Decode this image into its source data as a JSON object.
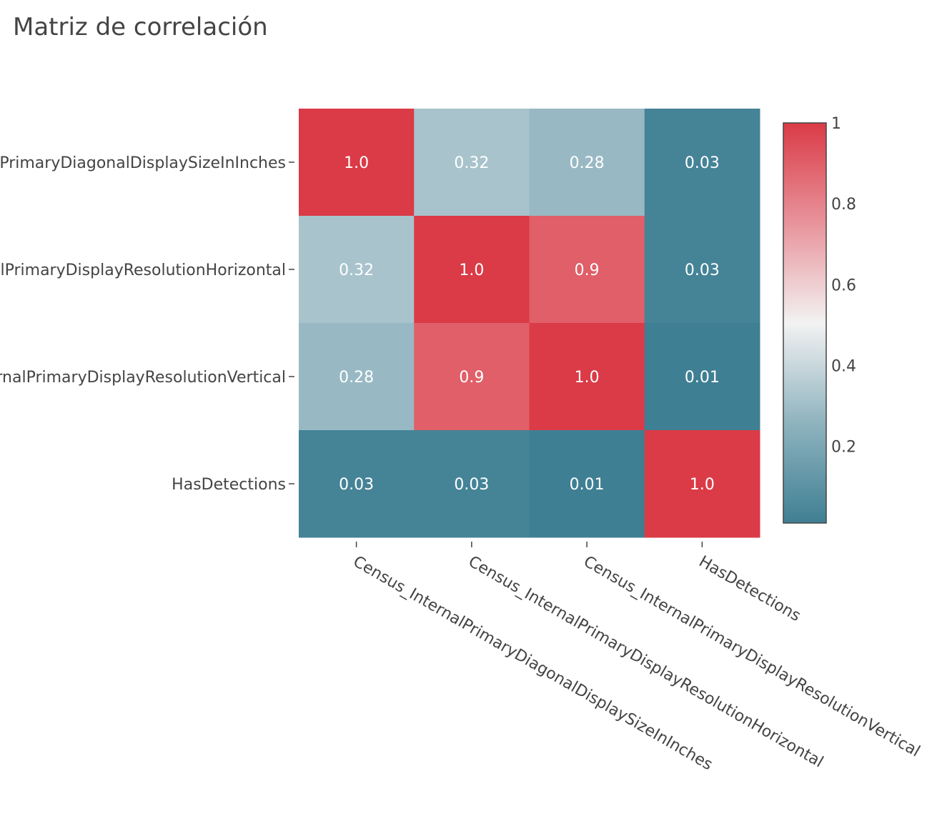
{
  "chart_data": {
    "type": "heatmap",
    "title": "Matriz de correlación",
    "x_categories": [
      "Census_InternalPrimaryDiagonalDisplaySizeInInches",
      "Census_InternalPrimaryDisplayResolutionHorizontal",
      "Census_InternalPrimaryDisplayResolutionVertical",
      "HasDetections"
    ],
    "y_categories": [
      "Census_InternalPrimaryDiagonalDisplaySizeInInches",
      "Census_InternalPrimaryDisplayResolutionHorizontal",
      "Census_InternalPrimaryDisplayResolutionVertical",
      "HasDetections"
    ],
    "z": [
      [
        1.0,
        0.32,
        0.28,
        0.03
      ],
      [
        0.32,
        1.0,
        0.9,
        0.03
      ],
      [
        0.28,
        0.9,
        1.0,
        0.01
      ],
      [
        0.03,
        0.03,
        0.01,
        1.0
      ]
    ],
    "cell_labels": [
      [
        "1.0",
        "0.32",
        "0.28",
        "0.03"
      ],
      [
        "0.32",
        "1.0",
        "0.9",
        "0.03"
      ],
      [
        "0.28",
        "0.9",
        "1.0",
        "0.01"
      ],
      [
        "0.03",
        "0.03",
        "0.01",
        "1.0"
      ]
    ],
    "colorscale": {
      "min": 0.01,
      "max": 1.0,
      "stops": [
        [
          0.0,
          "#3f7f93"
        ],
        [
          0.25,
          "#8fb3bf"
        ],
        [
          0.5,
          "#f2f2f2"
        ],
        [
          0.75,
          "#e8939b"
        ],
        [
          1.0,
          "#da3b46"
        ]
      ],
      "tick_values": [
        0.2,
        0.4,
        0.6,
        0.8,
        1.0
      ],
      "tick_labels": [
        "0.2",
        "0.4",
        "0.6",
        "0.8",
        "1"
      ]
    },
    "x_tick_angle_deg": 30,
    "colorbar_position": "right"
  }
}
